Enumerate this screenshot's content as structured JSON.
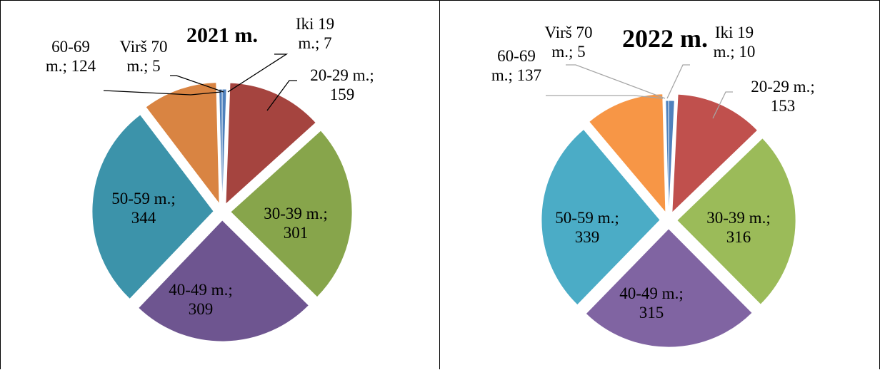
{
  "chart_data": [
    {
      "type": "pie",
      "title": "2021 m.",
      "colors": [
        "#4f81bd",
        "#a5443f",
        "#87a54b",
        "#6e5590",
        "#3c93aa",
        "#d98442"
      ],
      "slices": [
        {
          "label": "Iki 19 m.",
          "value": 7,
          "l1": "Iki 19",
          "l2": "m.; 7"
        },
        {
          "label": "20-29 m.",
          "value": 159,
          "l1": "20-29 m.;",
          "l2": "159"
        },
        {
          "label": "30-39 m.",
          "value": 301,
          "l1": "30-39 m.;",
          "l2": "301"
        },
        {
          "label": "40-49 m.",
          "value": 309,
          "l1": "40-49 m.;",
          "l2": "309"
        },
        {
          "label": "50-59 m.",
          "value": 344,
          "l1": "50-59 m.;",
          "l2": "344"
        },
        {
          "label": "60-69 m.",
          "value": 124,
          "l1": "60-69",
          "l2": "m.; 124"
        },
        {
          "label": "Virš 70 m.",
          "value": 5,
          "l1": "Virš 70",
          "l2": "m.; 5"
        }
      ]
    },
    {
      "type": "pie",
      "title": "2022 m.",
      "colors": [
        "#4f81bd",
        "#c0504d",
        "#9bbb59",
        "#8064a2",
        "#4bacc6",
        "#f79646"
      ],
      "slices": [
        {
          "label": "Iki 19 m.",
          "value": 10,
          "l1": "Iki 19",
          "l2": "m.; 10"
        },
        {
          "label": "20-29 m.",
          "value": 153,
          "l1": "20-29 m.;",
          "l2": "153"
        },
        {
          "label": "30-39 m.",
          "value": 316,
          "l1": "30-39 m.;",
          "l2": "316"
        },
        {
          "label": "40-49 m.",
          "value": 315,
          "l1": "40-49 m.;",
          "l2": "315"
        },
        {
          "label": "50-59 m.",
          "value": 339,
          "l1": "50-59 m.;",
          "l2": "339"
        },
        {
          "label": "60-69 m.",
          "value": 137,
          "l1": "60-69",
          "l2": "m.; 137"
        },
        {
          "label": "Virš 70 m.",
          "value": 5,
          "l1": "Virš 70",
          "l2": "m.; 5"
        }
      ]
    }
  ]
}
